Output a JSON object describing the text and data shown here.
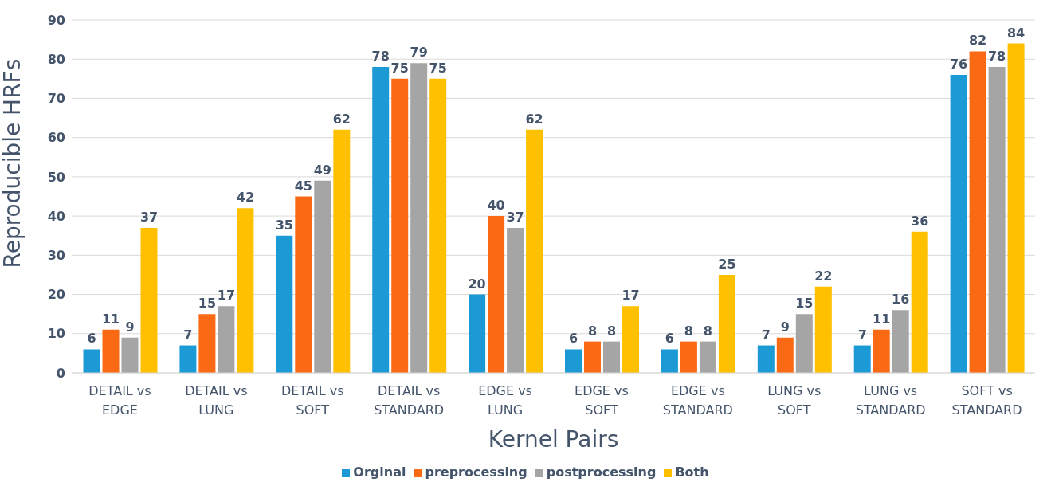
{
  "chart_data": {
    "type": "bar",
    "xlabel": "Kernel Pairs",
    "ylabel": "Reproducible HRFs",
    "categories": [
      "DETAIL vs EDGE",
      "DETAIL vs LUNG",
      "DETAIL vs SOFT",
      "DETAIL vs STANDARD",
      "EDGE vs LUNG",
      "EDGE vs SOFT",
      "EDGE vs STANDARD",
      "LUNG vs SOFT",
      "LUNG vs STANDARD",
      "SOFT vs STANDARD"
    ],
    "series": [
      {
        "name": "Orginal",
        "color": "#1b9ad6",
        "values": [
          6,
          7,
          35,
          78,
          20,
          6,
          6,
          7,
          7,
          76
        ]
      },
      {
        "name": "preprocessing",
        "color": "#fa6a14",
        "values": [
          11,
          15,
          45,
          75,
          40,
          8,
          8,
          9,
          11,
          82
        ]
      },
      {
        "name": "postprocessing",
        "color": "#a5a5a5",
        "values": [
          9,
          17,
          49,
          79,
          37,
          8,
          8,
          15,
          16,
          78
        ]
      },
      {
        "name": "Both",
        "color": "#ffc000",
        "values": [
          37,
          42,
          62,
          75,
          62,
          17,
          25,
          22,
          36,
          84
        ]
      }
    ],
    "ylim": [
      0,
      90
    ],
    "yticks": [
      0,
      10,
      20,
      30,
      40,
      50,
      60,
      70,
      80,
      90
    ],
    "grid": "y",
    "legend": "bottom",
    "data_labels": true
  }
}
